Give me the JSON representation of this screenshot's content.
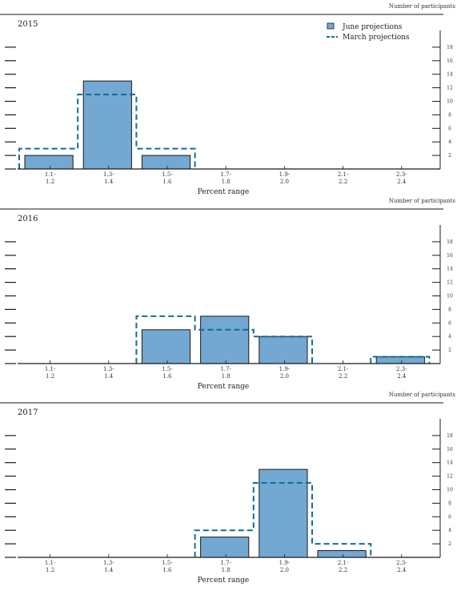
{
  "shared": {
    "participants_label": "Number of participants",
    "xlabel": "Percent range",
    "yticks": [
      "2",
      "4",
      "6",
      "8",
      "10",
      "12",
      "14",
      "16",
      "18"
    ],
    "legend": {
      "june": "June projections",
      "march": "March projections"
    },
    "colors": {
      "june_fill": "#72a8d1",
      "march_line": "#0f6d99",
      "axis": "#1a1a1a"
    }
  },
  "chart_data": [
    {
      "type": "bar",
      "title": "2015",
      "categories": [
        "1.1-\n1.2",
        "1.3-\n1.4",
        "1.5-\n1.6",
        "1.7-\n1.8",
        "1.9-\n2.0",
        "2.1-\n2.2",
        "2.3-\n2.4"
      ],
      "xlabel": "Percent range",
      "ylim": [
        0,
        18
      ],
      "series": [
        {
          "name": "June projections",
          "values": [
            2,
            13,
            2,
            0,
            0,
            0,
            0
          ]
        },
        {
          "name": "March projections",
          "values": [
            3,
            11,
            3,
            0,
            0,
            0,
            0
          ]
        }
      ]
    },
    {
      "type": "bar",
      "title": "2016",
      "categories": [
        "1.1-\n1.2",
        "1.3-\n1.4",
        "1.5-\n1.6",
        "1.7-\n1.8",
        "1.9-\n2.0",
        "2.1-\n2.2",
        "2.3-\n2.4"
      ],
      "xlabel": "Percent range",
      "ylim": [
        0,
        18
      ],
      "series": [
        {
          "name": "June projections",
          "values": [
            0,
            0,
            5,
            7,
            4,
            0,
            1
          ]
        },
        {
          "name": "March projections",
          "values": [
            0,
            0,
            7,
            5,
            4,
            0,
            1
          ]
        }
      ]
    },
    {
      "type": "bar",
      "title": "2017",
      "categories": [
        "1.1-\n1.2",
        "1.3-\n1.4",
        "1.5-\n1.6",
        "1.7-\n1.8",
        "1.9-\n2.0",
        "2.1-\n2.2",
        "2.3-\n2.4"
      ],
      "xlabel": "Percent range",
      "ylim": [
        0,
        18
      ],
      "series": [
        {
          "name": "June projections",
          "values": [
            0,
            0,
            0,
            3,
            13,
            1,
            0
          ]
        },
        {
          "name": "March projections",
          "values": [
            0,
            0,
            0,
            4,
            11,
            2,
            0
          ]
        }
      ]
    }
  ]
}
